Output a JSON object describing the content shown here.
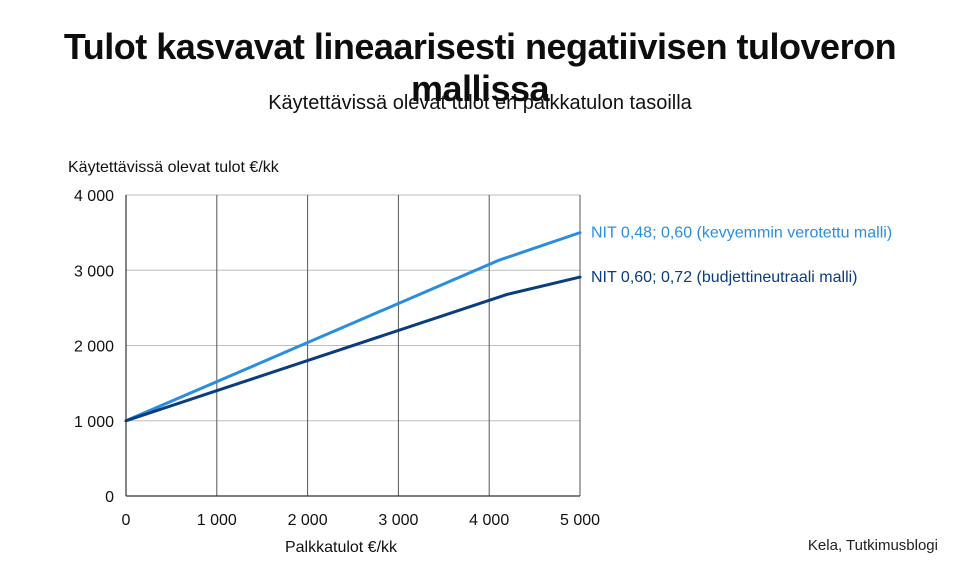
{
  "header": {
    "title": "Tulot kasvavat lineaarisesti negatiivisen tuloveron mallissa",
    "subtitle": "Käytettävissä olevat tulot eri palkkatulon tasoilla"
  },
  "source": "Kela, Tutkimusblogi",
  "chart_data": {
    "type": "line",
    "ylabel": "Käytettävissä olevat tulot €/kk",
    "xlabel": "Palkkatulot €/kk",
    "xlim": [
      0,
      5000
    ],
    "ylim": [
      0,
      4000
    ],
    "x_ticks": [
      0,
      1000,
      2000,
      3000,
      4000,
      5000
    ],
    "x_tick_labels": [
      "0",
      "1 000",
      "2 000",
      "3 000",
      "4 000",
      "5 000"
    ],
    "y_ticks": [
      0,
      1000,
      2000,
      3000,
      4000
    ],
    "y_tick_labels": [
      "0",
      "1 000",
      "2 000",
      "3 000",
      "4 000"
    ],
    "grid": true,
    "legend": "inline-right",
    "series": [
      {
        "name": "NIT 0,48; 0,60 (kevyemmin verotettu malli)",
        "color": "#2a8de0",
        "x": [
          0,
          4100,
          5000
        ],
        "y": [
          1000,
          3130,
          3500
        ]
      },
      {
        "name": "NIT 0,60; 0,72 (budjettineutraali malli)",
        "color": "#0a3d7e",
        "x": [
          0,
          4200,
          5000
        ],
        "y": [
          1000,
          2680,
          2910
        ]
      }
    ]
  }
}
